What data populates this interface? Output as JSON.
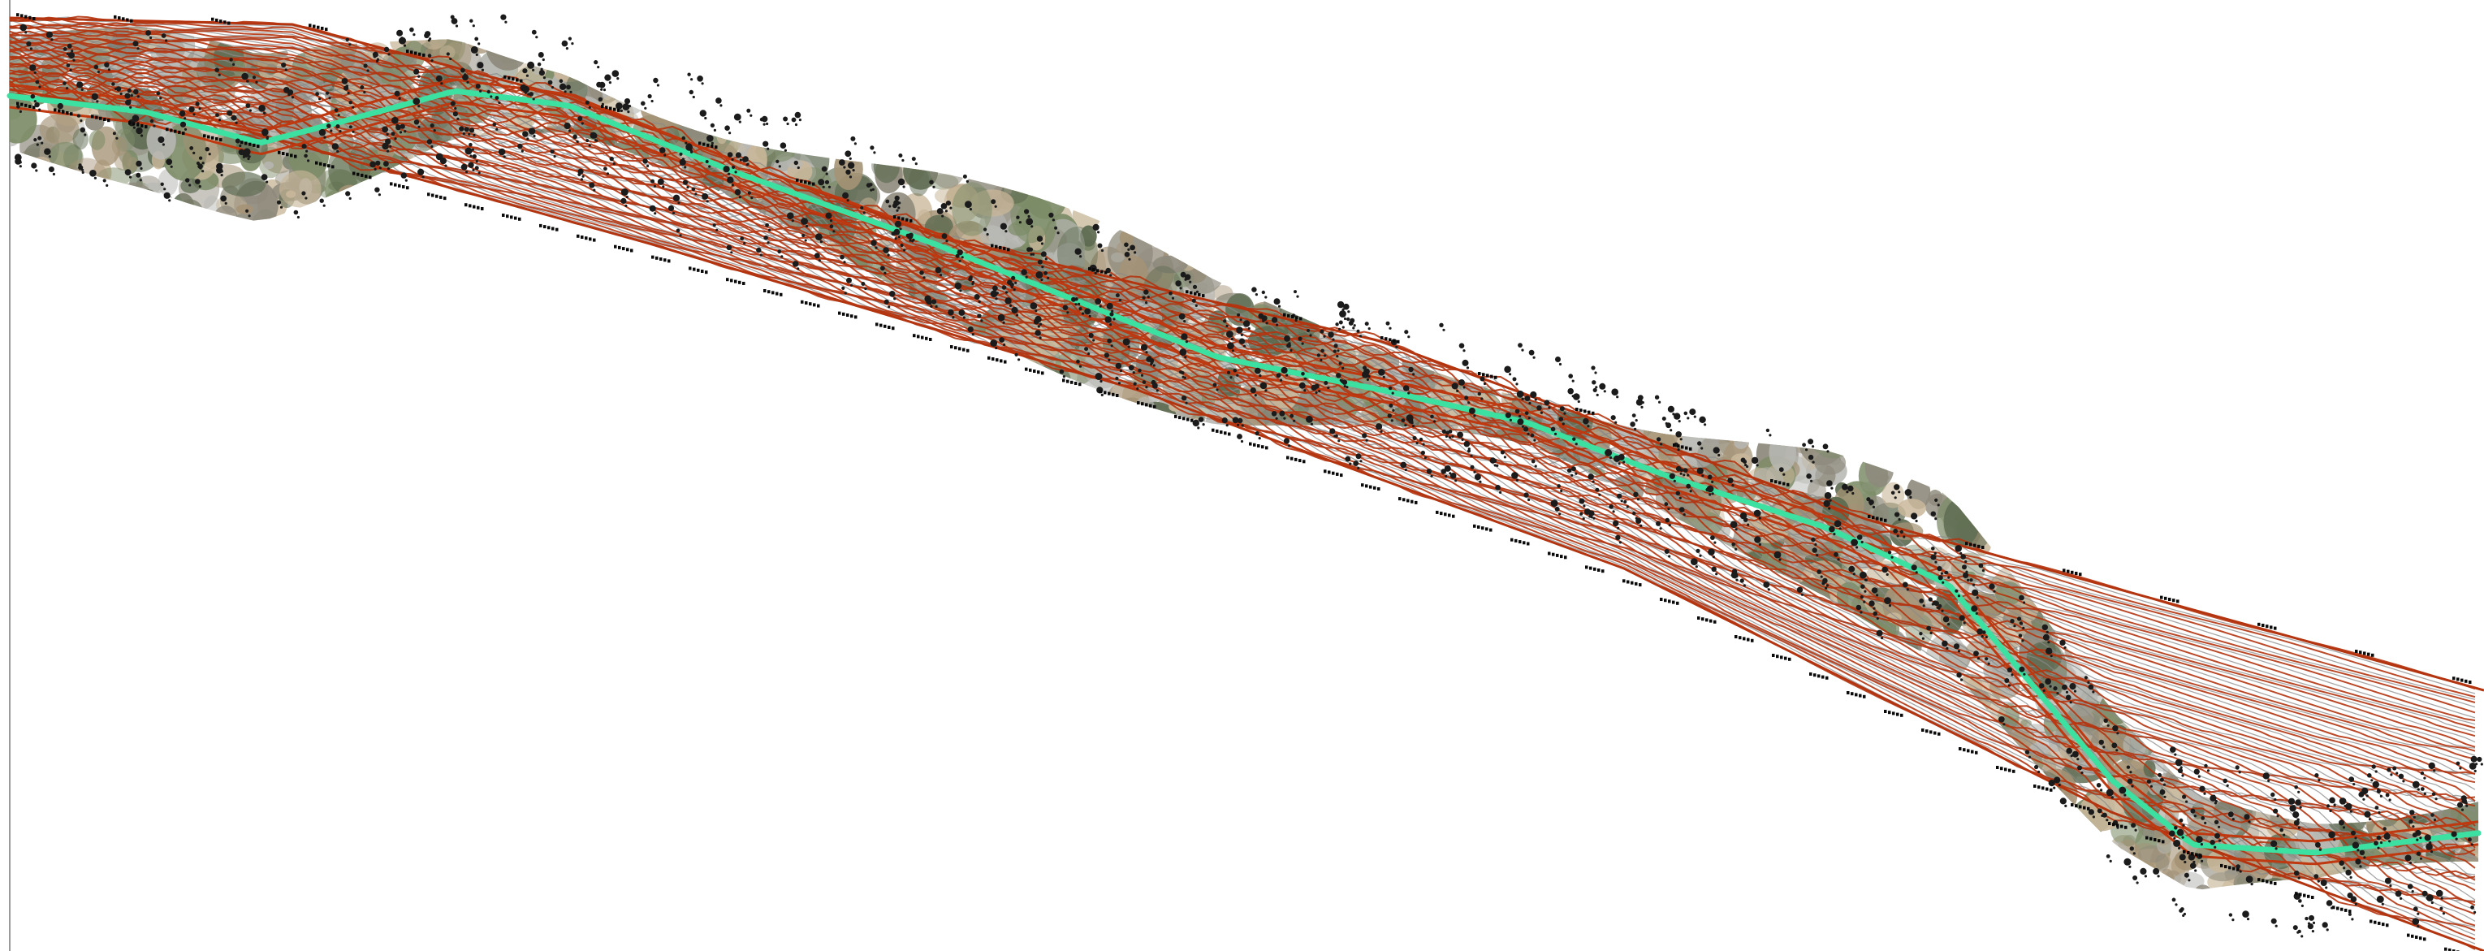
{
  "canvas": {
    "background": "#ffffff",
    "frame_rule_color": "#9a9a9a"
  },
  "drawing": {
    "type": "topographic road corridor plan",
    "layers": {
      "terrain_imagery": {
        "colors": [
          "#7d8c68",
          "#5d6a50",
          "#c9b79a",
          "#b8b8b4",
          "#8e8a7c",
          "#a59376"
        ]
      },
      "major_contours": {
        "color": "#b4340f"
      },
      "minor_contours": {
        "color": "#8a8a8a"
      },
      "road_centerline": {
        "color": "#3ce0a0"
      },
      "road_edges": {
        "color": "#c03810"
      },
      "vegetation_symbols": {
        "color": "#1b1b1b"
      },
      "station_markers": {
        "color": "#0a0a0a"
      }
    }
  }
}
